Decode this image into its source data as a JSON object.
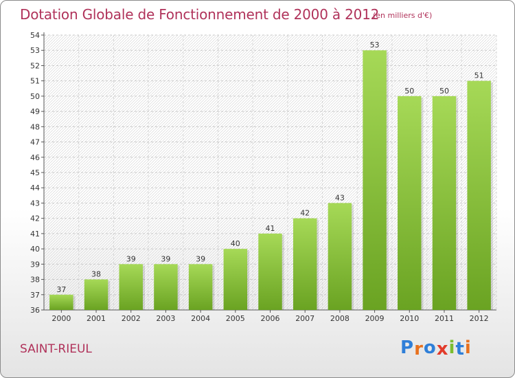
{
  "header": {
    "title": "Dotation Globale de Fonctionnement de 2000 à 2012",
    "subtitle": "(en milliers d'€)"
  },
  "footer": {
    "commune": "SAINT-RIEUL",
    "logo": {
      "text": "Proxiti",
      "letter_colors": [
        "#2f7fd8",
        "#e8711e",
        "#2f7fd8",
        "#e23b2b",
        "#7bbd2f",
        "#2f7fd8",
        "#e8711e"
      ]
    }
  },
  "chart_data": {
    "type": "bar",
    "title": "Dotation Globale de Fonctionnement de 2000 à 2012",
    "subtitle": "(en milliers d'€)",
    "categories": [
      "2000",
      "2001",
      "2002",
      "2003",
      "2004",
      "2005",
      "2006",
      "2007",
      "2008",
      "2009",
      "2010",
      "2011",
      "2012"
    ],
    "values": [
      37,
      38,
      39,
      39,
      39,
      40,
      41,
      42,
      43,
      53,
      50,
      50,
      51
    ],
    "data_labels": [
      "37",
      "38",
      "39",
      "39",
      "39",
      "40",
      "41",
      "42",
      "43",
      "53",
      "50",
      "50",
      "51"
    ],
    "ylim": [
      36,
      54
    ],
    "y_ticks": [
      36,
      37,
      38,
      39,
      40,
      41,
      42,
      43,
      44,
      45,
      46,
      47,
      48,
      49,
      50,
      51,
      52,
      53,
      54
    ],
    "grid": true,
    "bar_color_light": "#a6d957",
    "bar_color_dark": "#6aa322",
    "title_color": "#b0325a"
  }
}
